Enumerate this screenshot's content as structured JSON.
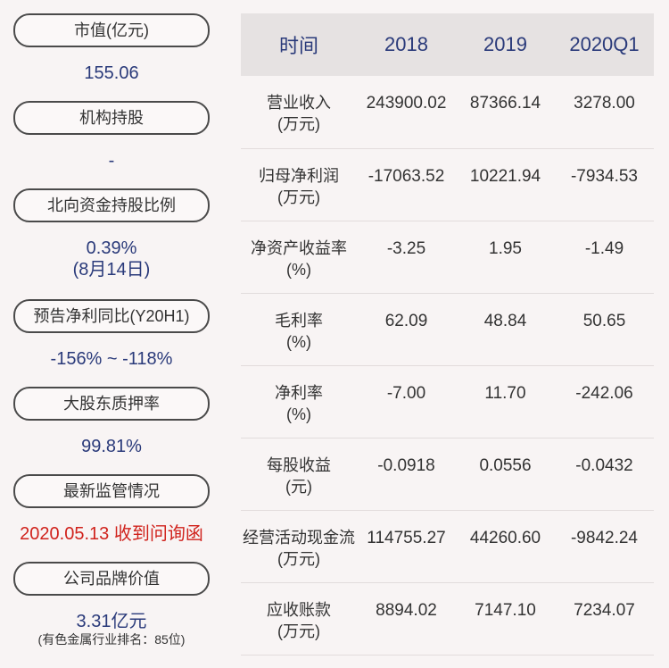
{
  "left": {
    "items": [
      {
        "label": "市值(亿元)",
        "value": "155.06"
      },
      {
        "label": "机构持股",
        "value": "-"
      },
      {
        "label": "北向资金持股比例",
        "value": "0.39%",
        "value2": "(8月14日)"
      },
      {
        "label": "预告净利同比(Y20H1)",
        "value": "-156% ~ -118%"
      },
      {
        "label": "大股东质押率",
        "value": "99.81%"
      },
      {
        "label": "最新监管情况",
        "value": "2020.05.13 收到问询函"
      },
      {
        "label": "公司品牌价值",
        "value": "3.31亿元",
        "note": "(有色金属行业排名：85位)"
      }
    ],
    "colors": {
      "value": "#2a3a7a",
      "alert": "#d0221c"
    }
  },
  "table": {
    "headers": [
      "时间",
      "2018",
      "2019",
      "2020Q1"
    ],
    "rows": [
      {
        "label": "营业收入",
        "unit": "(万元)",
        "values": [
          "243900.02",
          "87366.14",
          "3278.00"
        ]
      },
      {
        "label": "归母净利润",
        "unit": "(万元)",
        "values": [
          "-17063.52",
          "10221.94",
          "-7934.53"
        ]
      },
      {
        "label": "净资产收益率",
        "unit": "(%)",
        "values": [
          "-3.25",
          "1.95",
          "-1.49"
        ]
      },
      {
        "label": "毛利率",
        "unit": "(%)",
        "values": [
          "62.09",
          "48.84",
          "50.65"
        ]
      },
      {
        "label": "净利率",
        "unit": "(%)",
        "values": [
          "-7.00",
          "11.70",
          "-242.06"
        ]
      },
      {
        "label": "每股收益",
        "unit": "(元)",
        "values": [
          "-0.0918",
          "0.0556",
          "-0.0432"
        ]
      },
      {
        "label": "经营活动现金流",
        "unit": "(万元)",
        "values": [
          "114755.27",
          "44260.60",
          "-9842.24"
        ]
      },
      {
        "label": "应收账款",
        "unit": "(万元)",
        "values": [
          "8894.02",
          "7147.10",
          "7234.07"
        ]
      }
    ]
  }
}
